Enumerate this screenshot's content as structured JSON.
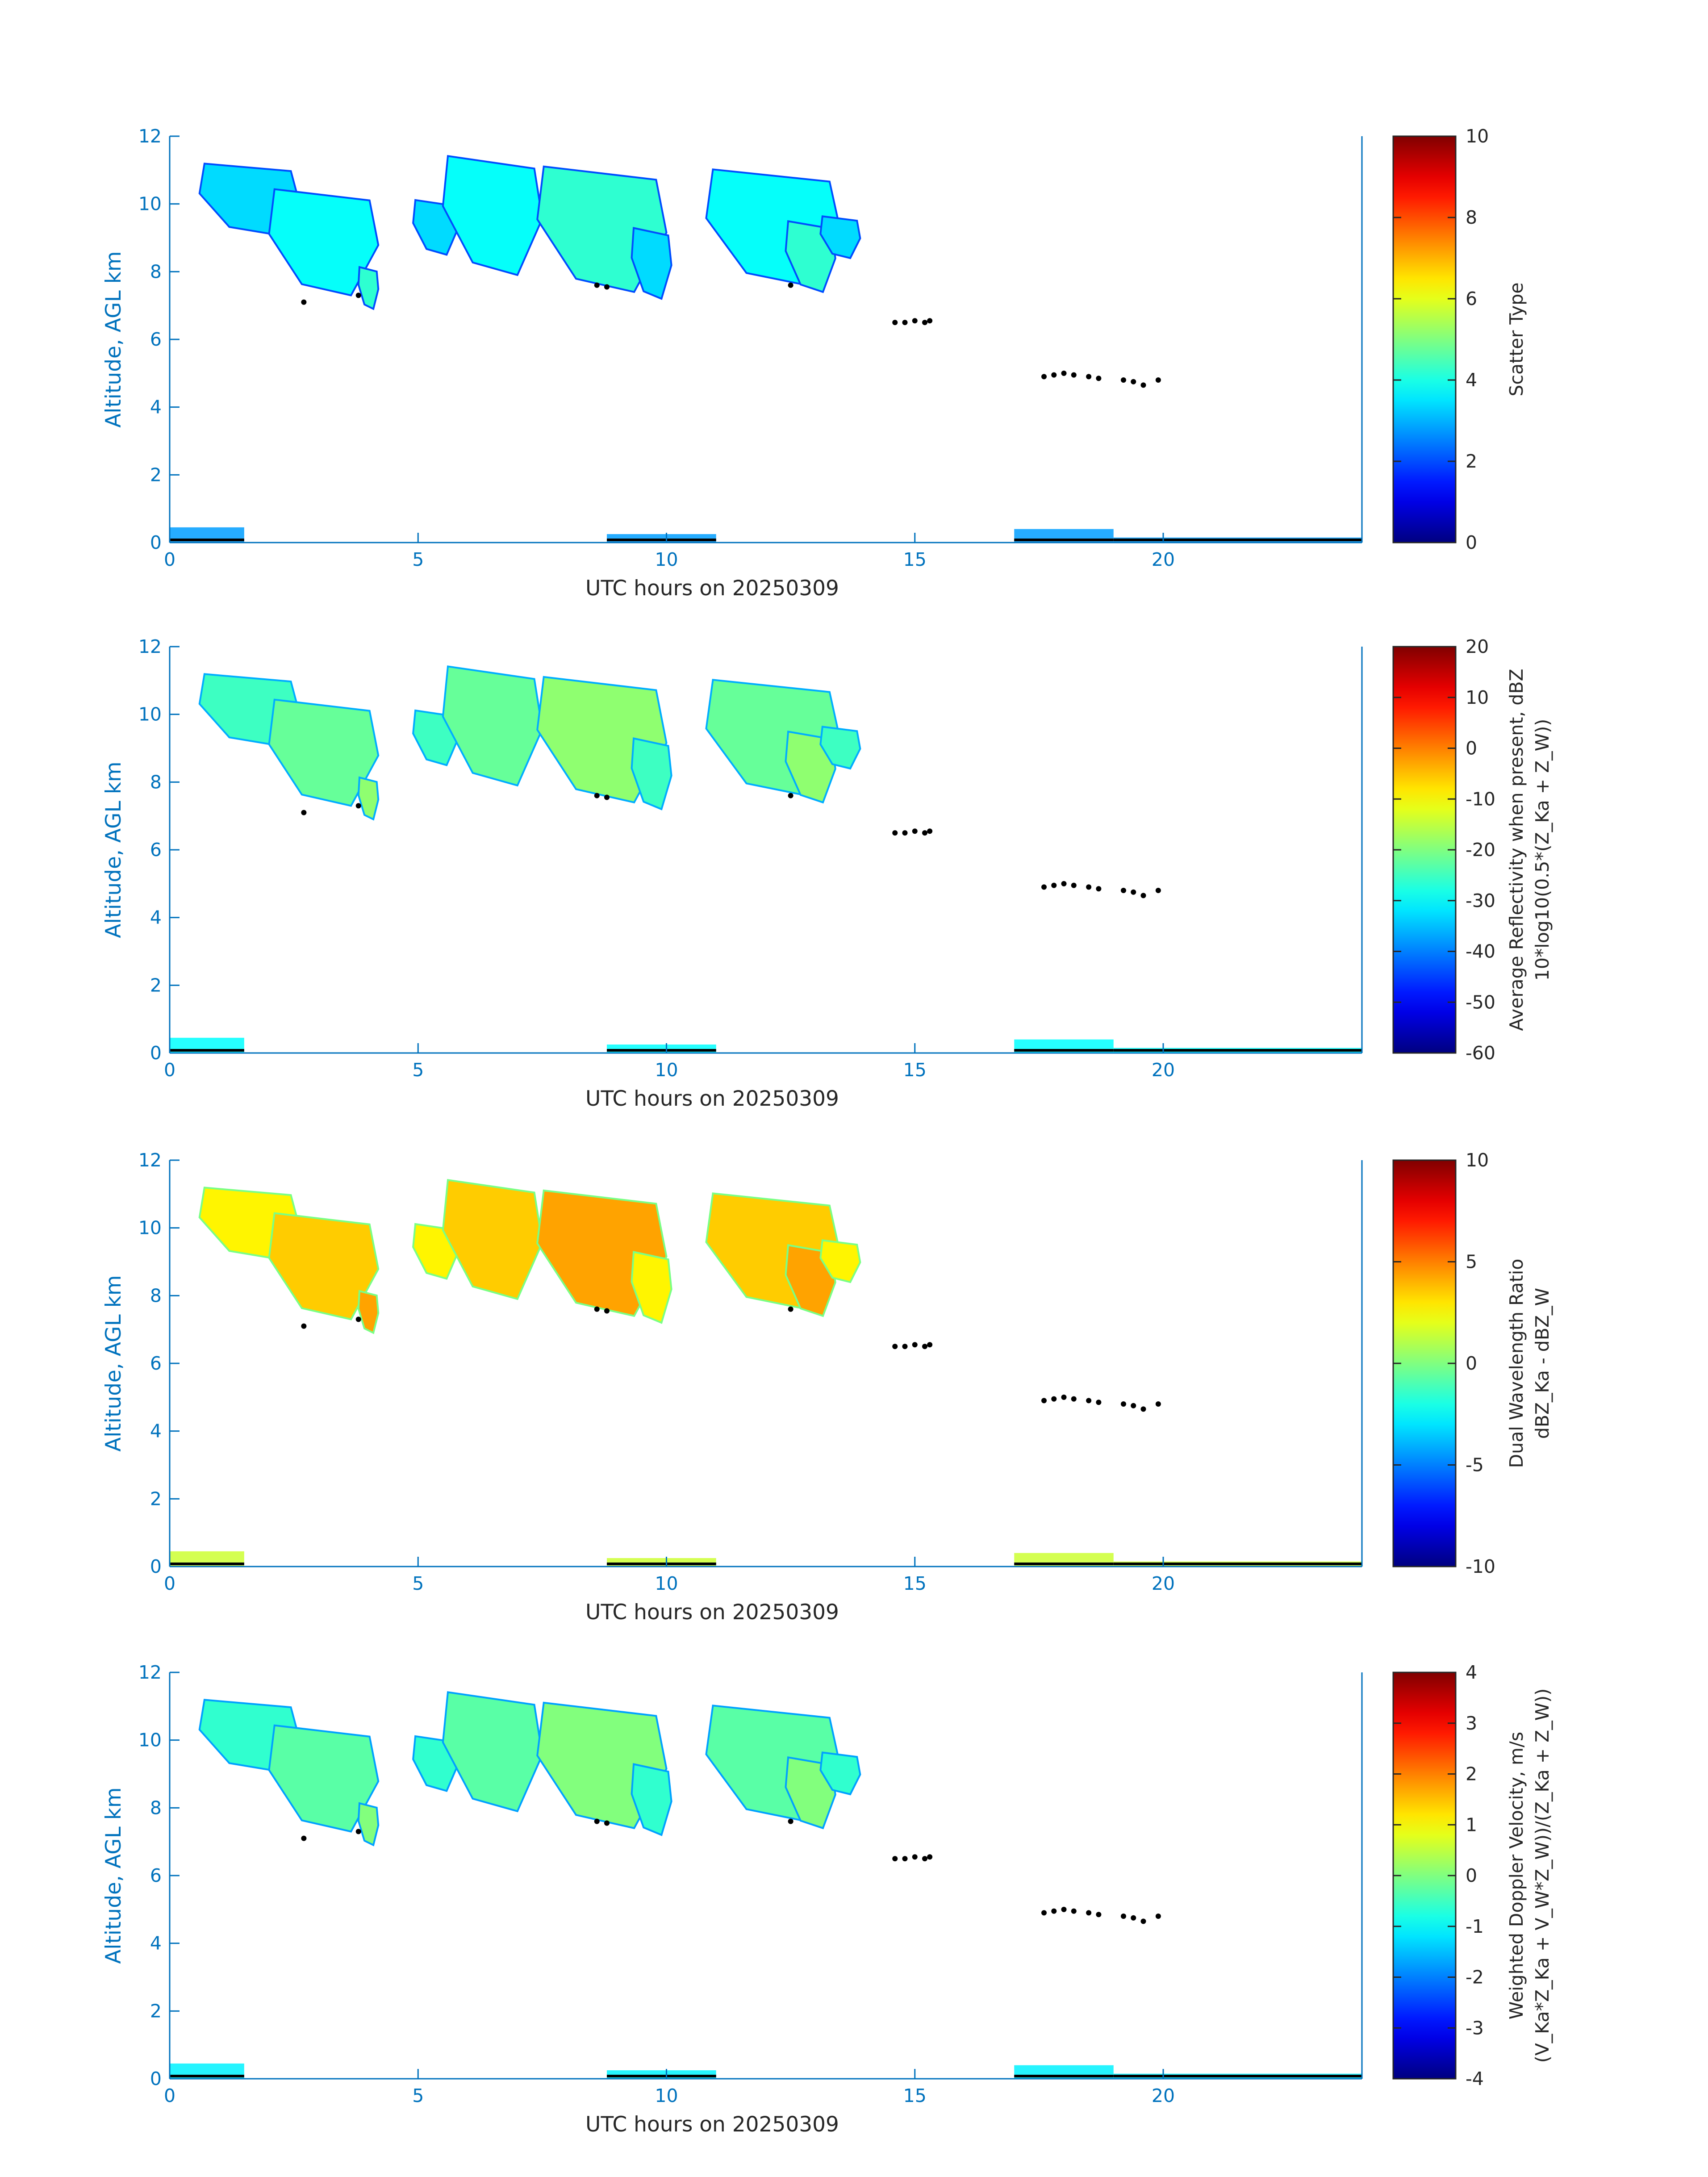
{
  "chart_data": [
    {
      "type": "heatmap",
      "xlabel": "UTC hours on 20250309",
      "ylabel": "Altitude, AGL km",
      "xlim": [
        0,
        24
      ],
      "ylim": [
        0,
        12
      ],
      "xticks": [
        "0",
        "5",
        "10",
        "15",
        "20"
      ],
      "yticks": [
        "0",
        "2",
        "4",
        "6",
        "8",
        "10",
        "12"
      ],
      "colorbar": {
        "label_lines": [
          "Scatter Type"
        ],
        "range": [
          0,
          10
        ],
        "ticks": [
          "0",
          "2",
          "4",
          "6",
          "8",
          "10"
        ],
        "colormap": "jet"
      },
      "field_value": 3.8
    },
    {
      "type": "heatmap",
      "xlabel": "UTC hours on 20250309",
      "ylabel": "Altitude, AGL km",
      "xlim": [
        0,
        24
      ],
      "ylim": [
        0,
        12
      ],
      "xticks": [
        "0",
        "5",
        "10",
        "15",
        "20"
      ],
      "yticks": [
        "0",
        "2",
        "4",
        "6",
        "8",
        "10",
        "12"
      ],
      "colorbar": {
        "label_lines": [
          "Average Reflectivity when present, dBZ",
          "10*log10(0.5*(Z_Ka + Z_W))"
        ],
        "range": [
          -60,
          20
        ],
        "ticks": [
          "-60",
          "-50",
          "-40",
          "-30",
          "-20",
          "-10",
          "0",
          "10",
          "20"
        ],
        "colormap": "jet"
      },
      "field_value": -22
    },
    {
      "type": "heatmap",
      "xlabel": "UTC hours on 20250309",
      "ylabel": "Altitude, AGL km",
      "xlim": [
        0,
        24
      ],
      "ylim": [
        0,
        12
      ],
      "xticks": [
        "0",
        "5",
        "10",
        "15",
        "20"
      ],
      "yticks": [
        "0",
        "2",
        "4",
        "6",
        "8",
        "10",
        "12"
      ],
      "colorbar": {
        "label_lines": [
          "Dual Wavelength Ratio",
          "dBZ_Ka - dBZ_W"
        ],
        "range": [
          -10,
          10
        ],
        "ticks": [
          "-10",
          "-5",
          "0",
          "5",
          "10"
        ],
        "colormap": "jet"
      },
      "field_value": 3.5
    },
    {
      "type": "heatmap",
      "xlabel": "UTC hours on 20250309",
      "ylabel": "Altitude, AGL km",
      "xlim": [
        0,
        24
      ],
      "ylim": [
        0,
        12
      ],
      "xticks": [
        "0",
        "5",
        "10",
        "15",
        "20"
      ],
      "yticks": [
        "0",
        "2",
        "4",
        "6",
        "8",
        "10",
        "12"
      ],
      "colorbar": {
        "label_lines": [
          "Weighted Doppler Velocity, m/s",
          "(V_Ka*Z_Ka + V_W*Z_W))/(Z_Ka + Z_W))"
        ],
        "range": [
          -4,
          4
        ],
        "ticks": [
          "-4",
          "-3",
          "-2",
          "-1",
          "0",
          "1",
          "2",
          "3",
          "4"
        ],
        "colormap": "jet"
      },
      "field_value": -0.3
    }
  ],
  "cloud_blobs": [
    {
      "x": [
        0.6,
        2.6
      ],
      "y": [
        9.1,
        11.3
      ]
    },
    {
      "x": [
        2.0,
        4.2
      ],
      "y": [
        7.3,
        10.6
      ]
    },
    {
      "x": [
        3.8,
        4.2
      ],
      "y": [
        6.9,
        8.2
      ]
    },
    {
      "x": [
        4.9,
        5.8
      ],
      "y": [
        8.5,
        10.2
      ]
    },
    {
      "x": [
        5.5,
        7.5
      ],
      "y": [
        7.9,
        11.6
      ]
    },
    {
      "x": [
        7.4,
        10.0
      ],
      "y": [
        7.4,
        11.3
      ]
    },
    {
      "x": [
        9.3,
        10.1
      ],
      "y": [
        7.2,
        9.4
      ]
    },
    {
      "x": [
        10.8,
        13.5
      ],
      "y": [
        7.6,
        11.2
      ]
    },
    {
      "x": [
        12.4,
        13.4
      ],
      "y": [
        7.4,
        9.6
      ]
    },
    {
      "x": [
        13.1,
        13.9
      ],
      "y": [
        8.4,
        9.7
      ]
    }
  ],
  "cloud_base_points": [
    {
      "x": 2.7,
      "y": 7.1
    },
    {
      "x": 3.8,
      "y": 7.3
    },
    {
      "x": 8.6,
      "y": 7.6
    },
    {
      "x": 8.8,
      "y": 7.55
    },
    {
      "x": 12.5,
      "y": 7.6
    },
    {
      "x": 14.6,
      "y": 6.5
    },
    {
      "x": 14.8,
      "y": 6.5
    },
    {
      "x": 15.0,
      "y": 6.55
    },
    {
      "x": 15.2,
      "y": 6.5
    },
    {
      "x": 15.3,
      "y": 6.55
    },
    {
      "x": 17.6,
      "y": 4.9
    },
    {
      "x": 17.8,
      "y": 4.95
    },
    {
      "x": 18.0,
      "y": 5.0
    },
    {
      "x": 18.2,
      "y": 4.95
    },
    {
      "x": 18.5,
      "y": 4.9
    },
    {
      "x": 18.7,
      "y": 4.85
    },
    {
      "x": 19.2,
      "y": 4.8
    },
    {
      "x": 19.4,
      "y": 4.75
    },
    {
      "x": 19.6,
      "y": 4.65
    },
    {
      "x": 19.9,
      "y": 4.8
    }
  ],
  "surface_segments": [
    {
      "x": [
        0.0,
        1.5
      ],
      "y_top": 0.45
    },
    {
      "x": 0,
      "x2": 0,
      "note": ""
    },
    {
      "x": [
        8.8,
        11.0
      ],
      "y_top": 0.25
    },
    {
      "x": [
        17.0,
        19.0
      ],
      "y_top": 0.4
    },
    {
      "x": [
        19.0,
        24.0
      ],
      "y_top": 0.15
    }
  ]
}
